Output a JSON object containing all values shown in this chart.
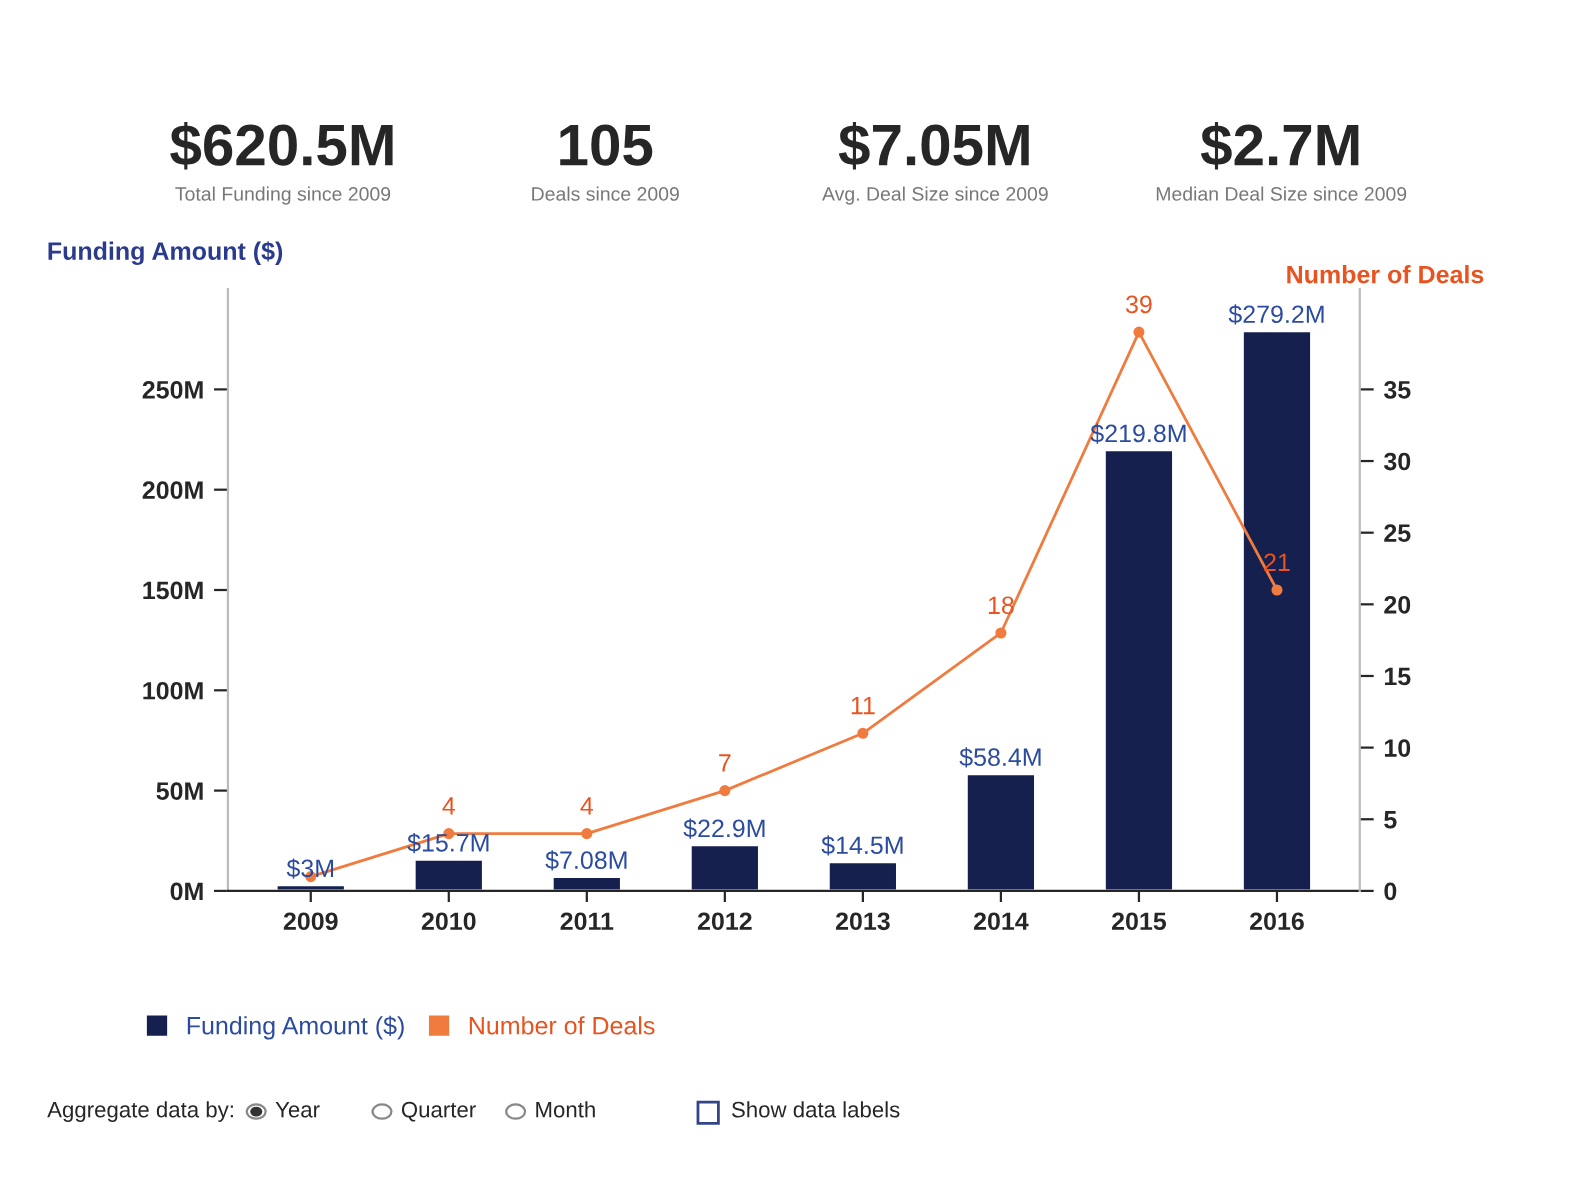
{
  "chart_data": {
    "type": "bar",
    "categories": [
      "2009",
      "2010",
      "2011",
      "2012",
      "2013",
      "2014",
      "2015",
      "2016"
    ],
    "ylabel": "Funding Amount ($)",
    "y2label": "Number of Deals",
    "ylim": [
      0,
      300
    ],
    "yticks": [
      {
        "value": 0,
        "label": "0M"
      },
      {
        "value": 50,
        "label": "50M"
      },
      {
        "value": 100,
        "label": "100M"
      },
      {
        "value": 150,
        "label": "150M"
      },
      {
        "value": 200,
        "label": "200M"
      },
      {
        "value": 250,
        "label": "250M"
      }
    ],
    "y2lim": [
      0,
      42
    ],
    "y2ticks": [
      0,
      5,
      10,
      15,
      20,
      25,
      30,
      35
    ],
    "series": [
      {
        "name": "Funding Amount ($)",
        "color": "#15204f",
        "values": [
          3,
          15.7,
          7.08,
          22.9,
          14.5,
          58.4,
          219.8,
          279.2
        ],
        "value_labels": [
          "$3M",
          "$15.7M",
          "$7.08M",
          "$22.9M",
          "$14.5M",
          "$58.4M",
          "$219.8M",
          "$279.2M"
        ]
      },
      {
        "name": "Number of Deals",
        "type": "line",
        "axis": "y2",
        "color": "#f07b3f",
        "values": [
          1,
          4,
          4,
          7,
          11,
          18,
          39,
          21
        ],
        "value_labels": [
          null,
          "4",
          "4",
          "7",
          "11",
          "18",
          "39",
          "21"
        ]
      }
    ],
    "marker": "circle",
    "line_style": "solid",
    "grid": false,
    "legend": "bottom left",
    "annotations": [
      "$620.5M",
      "Total Funding since 2009",
      "105",
      "Deals since 2009",
      "$7.05M",
      "Avg. Deal Size since 2009",
      "$2.7M",
      "Median Deal Size since 2009",
      "Aggregate data by:",
      "Year",
      "Quarter",
      "Month",
      "Show data labels"
    ]
  }
}
